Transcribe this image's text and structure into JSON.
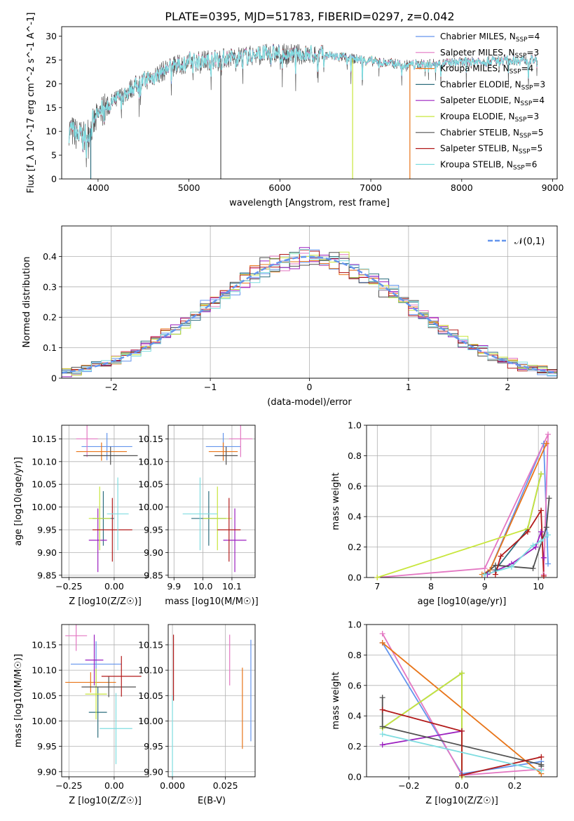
{
  "figure": {
    "title": "PLATE=0395, MJD=51783, FIBERID=0297, z=0.042"
  },
  "models": [
    {
      "name": "Chabrier MILES",
      "nssp": "4",
      "color": "#6495ed"
    },
    {
      "name": "Salpeter MILES",
      "nssp": "3",
      "color": "#e377c2"
    },
    {
      "name": "Kroupa MILES",
      "nssp": "4",
      "color": "#e8751a"
    },
    {
      "name": "Chabrier ELODIE",
      "nssp": "3",
      "color": "#2e6e7e"
    },
    {
      "name": "Salpeter ELODIE",
      "nssp": "4",
      "color": "#9b1fbf"
    },
    {
      "name": "Kroupa ELODIE",
      "nssp": "3",
      "color": "#c8e63c"
    },
    {
      "name": "Chabrier STELIB",
      "nssp": "5",
      "color": "#505050"
    },
    {
      "name": "Salpeter STELIB",
      "nssp": "5",
      "color": "#b21a1a"
    },
    {
      "name": "Kroupa STELIB",
      "nssp": "6",
      "color": "#7fdde0"
    }
  ],
  "chart_data": [
    {
      "id": "spectrum",
      "type": "line",
      "xlabel": "wavelength [Angstrom, rest frame]",
      "ylabel": "Flux [f_λ 10^-17 erg cm^-2 s^-1 A^-1]",
      "xlim": [
        3600,
        9050
      ],
      "ylim": [
        0,
        32
      ],
      "xticks": [
        4000,
        5000,
        6000,
        7000,
        8000,
        9000
      ],
      "yticks": [
        0,
        5,
        10,
        15,
        20,
        25,
        30
      ],
      "legend_position": "right",
      "continuum": {
        "x": [
          3680,
          3750,
          3850,
          3950,
          4050,
          4200,
          4400,
          4600,
          4800,
          5000,
          5300,
          5600,
          5900,
          6200,
          6500,
          6800,
          7100,
          7400,
          7700,
          8000,
          8300,
          8600,
          8830
        ],
        "y": [
          10.5,
          9.5,
          8.5,
          11.5,
          14.5,
          16.5,
          19.5,
          21.5,
          23.5,
          24.5,
          25.2,
          25.8,
          26.3,
          26.2,
          26.0,
          25.3,
          24.5,
          24.0,
          24.2,
          24.5,
          24.8,
          25.0,
          25.0
        ]
      },
      "drops": [
        {
          "x": 3920,
          "color": "#2e6e7e"
        },
        {
          "x": 5350,
          "color": "#505050"
        },
        {
          "x": 6800,
          "color": "#c8e63c"
        },
        {
          "x": 7430,
          "color": "#e8751a"
        }
      ]
    },
    {
      "id": "residuals",
      "type": "bar",
      "xlabel": "(data-model)/error",
      "ylabel": "Normed distribution",
      "xlim": [
        -2.5,
        2.5
      ],
      "ylim": [
        0,
        0.5
      ],
      "xticks": [
        -2,
        -1,
        0,
        1,
        2
      ],
      "yticks": [
        0.0,
        0.1,
        0.2,
        0.3,
        0.4
      ],
      "bin_width": 0.1,
      "reference": {
        "name": "𝒩(0,1)",
        "mean": 0,
        "sigma": 1,
        "color": "#6495ed",
        "dashed": true
      },
      "legend_position": "top-right"
    },
    {
      "id": "age-vs-Z",
      "type": "scatter",
      "xlabel": "Z [log10(Z/Z☉)]",
      "ylabel": "age [log10(age/yr)]",
      "xlim": [
        -0.29,
        0.19
      ],
      "ylim": [
        9.845,
        10.18
      ],
      "xticks": [
        -0.25,
        0.0
      ],
      "xtick_labels": [
        "−0.25",
        "0.00"
      ],
      "yticks": [
        9.85,
        9.9,
        9.95,
        10.0,
        10.05,
        10.1,
        10.15
      ],
      "ytick_labels": [
        "9.85",
        "9.90",
        "9.95",
        "10.00",
        "10.05",
        "10.10",
        "10.15"
      ],
      "points": [
        {
          "model": 0,
          "x": -0.04,
          "xerr": 0.14,
          "y": 10.133,
          "yerr": 0.03
        },
        {
          "model": 1,
          "x": -0.15,
          "xerr": 0.06,
          "y": 10.15,
          "yerr": 0.04
        },
        {
          "model": 2,
          "x": -0.07,
          "xerr": 0.14,
          "y": 10.122,
          "yerr": 0.02
        },
        {
          "model": 3,
          "x": -0.06,
          "xerr": 0.06,
          "y": 9.975,
          "yerr": 0.06
        },
        {
          "model": 4,
          "x": -0.09,
          "xerr": 0.05,
          "y": 9.927,
          "yerr": 0.07
        },
        {
          "model": 5,
          "x": -0.08,
          "xerr": 0.06,
          "y": 9.975,
          "yerr": 0.07
        },
        {
          "model": 6,
          "x": -0.02,
          "xerr": 0.15,
          "y": 10.113,
          "yerr": 0.02
        },
        {
          "model": 7,
          "x": -0.01,
          "xerr": 0.11,
          "y": 9.95,
          "yerr": 0.07
        },
        {
          "model": 8,
          "x": 0.02,
          "xerr": 0.06,
          "y": 9.985,
          "yerr": 0.08
        }
      ]
    },
    {
      "id": "age-vs-mass",
      "type": "scatter",
      "xlabel": "mass [log10(M/M☉)]",
      "ylabel": "",
      "xlim": [
        9.88,
        10.18
      ],
      "ylim": [
        9.845,
        10.18
      ],
      "xticks": [
        9.9,
        10.0,
        10.1
      ],
      "xtick_labels": [
        "9.9",
        "10.0",
        "10.1"
      ],
      "yticks": [
        9.85,
        9.9,
        9.95,
        10.0,
        10.05,
        10.1,
        10.15
      ],
      "ytick_labels": [
        "9.85",
        "9.90",
        "9.95",
        "10.00",
        "10.05",
        "10.10",
        "10.15"
      ],
      "points": [
        {
          "model": 0,
          "x": 10.07,
          "xerr": 0.06,
          "y": 10.133,
          "yerr": 0.03
        },
        {
          "model": 1,
          "x": 10.13,
          "xerr": 0.04,
          "y": 10.15,
          "yerr": 0.04
        },
        {
          "model": 2,
          "x": 10.07,
          "xerr": 0.05,
          "y": 10.122,
          "yerr": 0.02
        },
        {
          "model": 3,
          "x": 10.02,
          "xerr": 0.06,
          "y": 9.975,
          "yerr": 0.06
        },
        {
          "model": 4,
          "x": 10.11,
          "xerr": 0.04,
          "y": 9.927,
          "yerr": 0.07
        },
        {
          "model": 5,
          "x": 10.05,
          "xerr": 0.05,
          "y": 9.975,
          "yerr": 0.07
        },
        {
          "model": 6,
          "x": 10.08,
          "xerr": 0.04,
          "y": 10.113,
          "yerr": 0.02
        },
        {
          "model": 7,
          "x": 10.09,
          "xerr": 0.04,
          "y": 9.95,
          "yerr": 0.07
        },
        {
          "model": 8,
          "x": 9.99,
          "xerr": 0.06,
          "y": 9.985,
          "yerr": 0.08
        }
      ]
    },
    {
      "id": "weight-vs-age",
      "type": "line",
      "xlabel": "age [log10(age/yr)]",
      "ylabel": "mass weight",
      "xlim": [
        6.8,
        10.35
      ],
      "ylim": [
        0,
        1
      ],
      "xticks": [
        7,
        8,
        9,
        10
      ],
      "yticks": [
        0.0,
        0.2,
        0.4,
        0.6,
        0.8,
        1.0
      ],
      "ytick_labels": [
        "0.0",
        "0.2",
        "0.4",
        "0.6",
        "0.8",
        "1.0"
      ],
      "series": [
        {
          "model": 0,
          "x": [
            9.0,
            9.1,
            10.1,
            10.18
          ],
          "y": [
            0.02,
            0.05,
            0.88,
            0.09
          ]
        },
        {
          "model": 1,
          "x": [
            7.0,
            9.0,
            10.18,
            10.1
          ],
          "y": [
            0.0,
            0.06,
            0.94,
            0.02
          ]
        },
        {
          "model": 2,
          "x": [
            8.95,
            9.1,
            10.15
          ],
          "y": [
            0.02,
            0.05,
            0.88
          ]
        },
        {
          "model": 3,
          "x": [
            9.2,
            9.8,
            10.05
          ],
          "y": [
            0.05,
            0.32,
            0.68
          ]
        },
        {
          "model": 4,
          "x": [
            9.05,
            9.5,
            9.95,
            10.05,
            10.1
          ],
          "y": [
            0.02,
            0.09,
            0.2,
            0.3,
            0.13
          ]
        },
        {
          "model": 5,
          "x": [
            7.0,
            9.8,
            10.05
          ],
          "y": [
            0.0,
            0.32,
            0.68
          ]
        },
        {
          "model": 6,
          "x": [
            9.0,
            9.2,
            9.9,
            10.15,
            10.2
          ],
          "y": [
            0.02,
            0.08,
            0.06,
            0.33,
            0.52
          ]
        },
        {
          "model": 7,
          "x": [
            9.2,
            9.3,
            9.8,
            10.05,
            10.1
          ],
          "y": [
            0.02,
            0.14,
            0.3,
            0.44,
            0.01
          ]
        },
        {
          "model": 8,
          "x": [
            9.0,
            9.5,
            9.9,
            10.05,
            10.18
          ],
          "y": [
            0.02,
            0.07,
            0.21,
            0.24,
            0.28
          ]
        }
      ]
    },
    {
      "id": "mass-vs-Z",
      "type": "scatter",
      "xlabel": "Z [log10(Z/Z☉)]",
      "ylabel": "mass [log10(M/M☉)]",
      "xlim": [
        -0.29,
        0.19
      ],
      "ylim": [
        9.89,
        10.19
      ],
      "xticks": [
        -0.25,
        0.0
      ],
      "xtick_labels": [
        "−0.25",
        "0.00"
      ],
      "yticks": [
        9.9,
        9.95,
        10.0,
        10.05,
        10.1,
        10.15
      ],
      "ytick_labels": [
        "9.90",
        "9.95",
        "10.00",
        "10.05",
        "10.10",
        "10.15"
      ],
      "points": [
        {
          "model": 0,
          "x": -0.1,
          "xerr": 0.14,
          "y": 10.112,
          "yerr": 0.045
        },
        {
          "model": 1,
          "x": -0.21,
          "xerr": 0.06,
          "y": 10.168,
          "yerr": 0.03
        },
        {
          "model": 2,
          "x": -0.13,
          "xerr": 0.14,
          "y": 10.076,
          "yerr": 0.02
        },
        {
          "model": 3,
          "x": -0.09,
          "xerr": 0.05,
          "y": 10.017,
          "yerr": 0.05
        },
        {
          "model": 4,
          "x": -0.11,
          "xerr": 0.05,
          "y": 10.12,
          "yerr": 0.05
        },
        {
          "model": 5,
          "x": -0.1,
          "xerr": 0.06,
          "y": 10.053,
          "yerr": 0.05
        },
        {
          "model": 6,
          "x": -0.03,
          "xerr": 0.15,
          "y": 10.067,
          "yerr": 0.02
        },
        {
          "model": 7,
          "x": 0.04,
          "xerr": 0.11,
          "y": 10.088,
          "yerr": 0.04
        },
        {
          "model": 8,
          "x": 0.01,
          "xerr": 0.09,
          "y": 9.985,
          "yerr": 0.07
        }
      ]
    },
    {
      "id": "mass-vs-EBV",
      "type": "scatter",
      "xlabel": "E(B-V)",
      "ylabel": "",
      "xlim": [
        -0.002,
        0.039
      ],
      "ylim": [
        9.89,
        10.19
      ],
      "xticks": [
        0.0,
        0.025
      ],
      "xtick_labels": [
        "0.000",
        "0.025"
      ],
      "yticks": [
        9.9,
        9.95,
        10.0,
        10.05,
        10.1,
        10.15
      ],
      "ytick_labels": [
        "9.90",
        "9.95",
        "10.00",
        "10.05",
        "10.10",
        "10.15"
      ],
      "points": [
        {
          "model": 0,
          "x": 0.037,
          "y": 10.06,
          "yerr": 0.1
        },
        {
          "model": 1,
          "x": 0.027,
          "y": 10.12,
          "yerr": 0.05
        },
        {
          "model": 2,
          "x": 0.033,
          "y": 10.025,
          "yerr": 0.08
        },
        {
          "model": 7,
          "x": 0.0005,
          "y": 10.105,
          "yerr": 0.065
        },
        {
          "model": 8,
          "x": 0.0,
          "y": 9.96,
          "yerr": 0.09
        }
      ]
    },
    {
      "id": "weight-vs-Z",
      "type": "line",
      "xlabel": "Z [log10(Z/Z☉)]",
      "ylabel": "mass weight",
      "xlim": [
        -0.36,
        0.36
      ],
      "ylim": [
        0,
        1
      ],
      "xticks": [
        -0.2,
        0.0,
        0.2
      ],
      "xtick_labels": [
        "−0.2",
        "0.0",
        "0.2"
      ],
      "yticks": [
        0.0,
        0.2,
        0.4,
        0.6,
        0.8,
        1.0
      ],
      "ytick_labels": [
        "0.0",
        "0.2",
        "0.4",
        "0.6",
        "0.8",
        "1.0"
      ],
      "series": [
        {
          "model": 0,
          "x": [
            -0.3,
            0.0,
            0.3
          ],
          "y": [
            0.88,
            0.02,
            0.1
          ]
        },
        {
          "model": 1,
          "x": [
            -0.3,
            0.0,
            0.3
          ],
          "y": [
            0.94,
            0.01,
            0.05
          ]
        },
        {
          "model": 2,
          "x": [
            -0.3,
            0.3
          ],
          "y": [
            0.88,
            0.02
          ]
        },
        {
          "model": 3,
          "x": [
            -0.3,
            0.0,
            0.0
          ],
          "y": [
            0.32,
            0.68,
            0.0
          ]
        },
        {
          "model": 4,
          "x": [
            -0.3,
            0.0
          ],
          "y": [
            0.21,
            0.3
          ]
        },
        {
          "model": 5,
          "x": [
            -0.3,
            0.0,
            0.0
          ],
          "y": [
            0.32,
            0.68,
            0.0
          ]
        },
        {
          "model": 6,
          "x": [
            -0.3,
            -0.3,
            0.3,
            0.3
          ],
          "y": [
            0.52,
            0.33,
            0.08,
            0.07
          ]
        },
        {
          "model": 7,
          "x": [
            -0.3,
            0.0,
            0.0,
            0.3
          ],
          "y": [
            0.44,
            0.3,
            0.01,
            0.13
          ]
        },
        {
          "model": 8,
          "x": [
            -0.3,
            0.3
          ],
          "y": [
            0.28,
            0.04
          ]
        }
      ]
    }
  ]
}
